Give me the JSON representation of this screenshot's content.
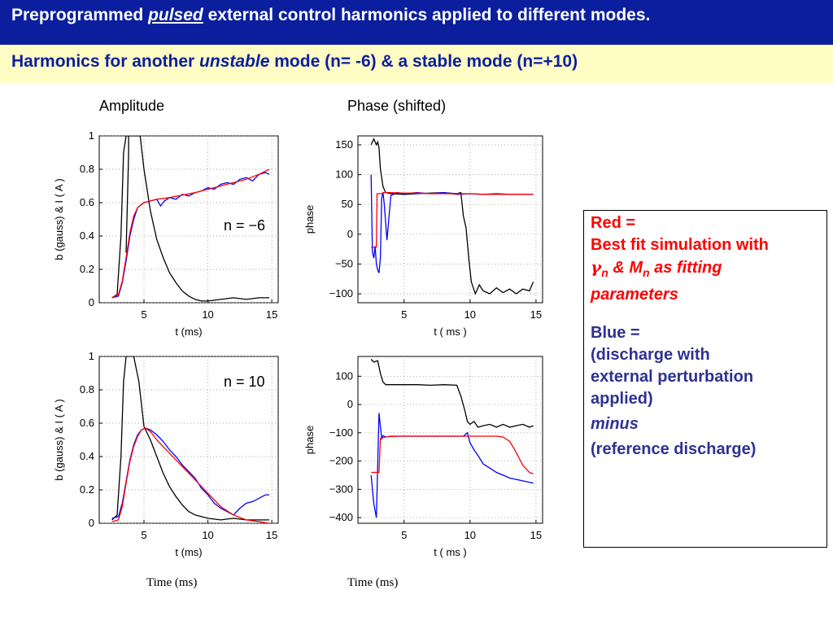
{
  "header": {
    "title_prefix": "Preprogrammed ",
    "title_em": "pulsed",
    "title_suffix": " external control harmonics applied to different modes.",
    "subtitle_prefix": "Harmonics for another ",
    "subtitle_em": "unstable",
    "subtitle_suffix": " mode (n= -6) & a stable mode (n=+10)"
  },
  "columns": {
    "left": "Amplitude",
    "right": "Phase (shifted)"
  },
  "time_labels": {
    "left": "Time (ms)",
    "right": "Time (ms)"
  },
  "legend": {
    "red_1": "Red =",
    "red_2": "Best fit simulation with",
    "red_gamma": "γ",
    "red_n1": "n",
    "red_mid": " & M",
    "red_n2": "n",
    "red_as": " as fitting",
    "red_3": "parameters",
    "blue_1": "Blue =",
    "blue_2": "(discharge with",
    "blue_3": "external perturbation",
    "blue_4": "applied)",
    "blue_5": "minus",
    "blue_6": "(reference discharge)"
  },
  "colors": {
    "title_bg": "#0b1f9e",
    "subtitle_bg": "#fffcc4",
    "red": "#ff0000",
    "blue": "#0000ff",
    "black": "#000000"
  },
  "chart_data": [
    {
      "type": "line",
      "id": "amp_n_minus6",
      "annotation": "n = −6",
      "xlabel": "t (ms)",
      "ylabel": "b (gauss)  & I ( A )",
      "xlim": [
        1.5,
        15.5
      ],
      "ylim": [
        0,
        1
      ],
      "xticks": [
        5,
        10,
        15
      ],
      "yticks": [
        0,
        0.2,
        0.4,
        0.6,
        0.8,
        1
      ],
      "grid": true,
      "series": [
        {
          "color": "black",
          "x": [
            2.5,
            2.9,
            3.2,
            3.4,
            3.6,
            3.9,
            4.1,
            4.4,
            4.7,
            5.0,
            5.5,
            6.0,
            6.5,
            7.0,
            7.5,
            8.0,
            8.5,
            9.0,
            9.5,
            10,
            11,
            12,
            13,
            14,
            14.8
          ],
          "y": [
            0.03,
            0.05,
            0.4,
            0.9,
            1.0,
            1.0,
            1.0,
            1.0,
            1.0,
            0.8,
            0.55,
            0.38,
            0.27,
            0.18,
            0.12,
            0.07,
            0.04,
            0.02,
            0.01,
            0.01,
            0.02,
            0.03,
            0.02,
            0.03,
            0.03
          ]
        },
        {
          "color": "black",
          "x": [
            3.6,
            3.7,
            3.8,
            3.8
          ],
          "y": [
            0.3,
            0.6,
            0.9,
            1.0
          ]
        },
        {
          "color": "blue",
          "x": [
            2.5,
            3.0,
            3.3,
            3.6,
            3.9,
            4.2,
            4.5,
            5.0,
            5.5,
            6.0,
            6.3,
            6.6,
            7.0,
            7.5,
            8.0,
            8.5,
            9.0,
            9.5,
            10,
            10.5,
            11,
            11.5,
            12,
            12.5,
            13,
            13.5,
            14,
            14.5,
            14.8
          ],
          "y": [
            0.03,
            0.04,
            0.12,
            0.25,
            0.4,
            0.5,
            0.57,
            0.6,
            0.61,
            0.62,
            0.58,
            0.61,
            0.63,
            0.62,
            0.65,
            0.64,
            0.66,
            0.67,
            0.69,
            0.68,
            0.71,
            0.72,
            0.71,
            0.74,
            0.75,
            0.73,
            0.77,
            0.78,
            0.77
          ]
        },
        {
          "color": "red",
          "x": [
            2.5,
            3.0,
            3.3,
            3.6,
            3.9,
            4.2,
            4.5,
            5.0,
            5.5,
            6.0,
            7,
            8,
            9,
            10,
            11,
            12,
            13,
            14,
            14.8
          ],
          "y": [
            0.03,
            0.05,
            0.13,
            0.27,
            0.42,
            0.52,
            0.57,
            0.6,
            0.61,
            0.62,
            0.63,
            0.645,
            0.66,
            0.68,
            0.7,
            0.72,
            0.74,
            0.77,
            0.8
          ]
        }
      ]
    },
    {
      "type": "line",
      "id": "phase_n_minus6",
      "xlabel": "t  ( ms )",
      "ylabel": "phase",
      "xlim": [
        1.5,
        15.5
      ],
      "ylim": [
        -115,
        165
      ],
      "xticks": [
        5,
        10,
        15
      ],
      "yticks": [
        -100,
        -50,
        0,
        50,
        100,
        150
      ],
      "grid": true,
      "series": [
        {
          "color": "black",
          "x": [
            2.5,
            2.7,
            2.9,
            3.0,
            3.1,
            3.2,
            3.4,
            3.6,
            4,
            5,
            6,
            7,
            8,
            9,
            9.3,
            9.5,
            9.7,
            9.9,
            10.1,
            10.4,
            10.7,
            11,
            11.5,
            12,
            12.5,
            13,
            13.5,
            14,
            14.5,
            14.8
          ],
          "y": [
            150,
            160,
            150,
            155,
            145,
            110,
            80,
            70,
            68,
            67,
            68,
            69,
            70,
            68,
            70,
            30,
            10,
            -40,
            -80,
            -100,
            -85,
            -95,
            -100,
            -90,
            -98,
            -92,
            -100,
            -92,
            -95,
            -80
          ]
        },
        {
          "color": "blue",
          "x": [
            2.5,
            2.6,
            2.7,
            2.8,
            2.9,
            3.0,
            3.1,
            3.2,
            3.3,
            3.4,
            3.5,
            3.7,
            4.0,
            4.5,
            5,
            6,
            7,
            8,
            9,
            10,
            11,
            12,
            13,
            14,
            14.8
          ],
          "y": [
            100,
            -30,
            -40,
            -20,
            -50,
            -60,
            -65,
            -40,
            60,
            70,
            50,
            -10,
            65,
            70,
            68,
            70,
            68,
            70,
            67,
            68,
            67,
            68,
            67,
            67,
            67
          ]
        },
        {
          "color": "red",
          "x": [
            2.5,
            2.9,
            2.95,
            3.3,
            3.4,
            4,
            5,
            6,
            7,
            8,
            9,
            10,
            11,
            12,
            13,
            14,
            14.8
          ],
          "y": [
            -22,
            -22,
            68,
            68,
            70,
            70,
            69,
            69,
            68,
            68,
            68,
            68,
            67,
            67,
            67,
            67,
            67
          ]
        }
      ]
    },
    {
      "type": "line",
      "id": "amp_n_10",
      "annotation": "n = 10",
      "xlabel": "t (ms)",
      "ylabel": "b (gauss)  & I ( A )",
      "xlim": [
        1.5,
        15.5
      ],
      "ylim": [
        0,
        1
      ],
      "xticks": [
        5,
        10,
        15
      ],
      "yticks": [
        0,
        0.2,
        0.4,
        0.6,
        0.8,
        1
      ],
      "grid": true,
      "series": [
        {
          "color": "black",
          "x": [
            2.5,
            2.9,
            3.2,
            3.4,
            3.6,
            3.9,
            4.2,
            4.6,
            5.0,
            5.5,
            6.0,
            6.5,
            7.0,
            7.5,
            8.0,
            8.5,
            9.0,
            10,
            11,
            12,
            13,
            14,
            14.8
          ],
          "y": [
            0.02,
            0.05,
            0.4,
            0.85,
            1.0,
            1.0,
            1.0,
            0.85,
            0.58,
            0.5,
            0.4,
            0.3,
            0.22,
            0.16,
            0.11,
            0.07,
            0.05,
            0.03,
            0.02,
            0.03,
            0.02,
            0.02,
            0.02
          ]
        },
        {
          "color": "blue",
          "x": [
            2.5,
            3.0,
            3.3,
            3.6,
            3.9,
            4.2,
            4.5,
            4.8,
            5.1,
            5.5,
            6.0,
            6.5,
            7,
            7.5,
            8,
            8.5,
            9,
            9.5,
            10,
            10.5,
            11,
            11.5,
            12,
            12.5,
            13,
            13.5,
            14,
            14.5,
            14.8
          ],
          "y": [
            0.03,
            0.04,
            0.12,
            0.25,
            0.38,
            0.47,
            0.53,
            0.56,
            0.57,
            0.56,
            0.53,
            0.49,
            0.44,
            0.4,
            0.35,
            0.31,
            0.27,
            0.21,
            0.17,
            0.12,
            0.09,
            0.07,
            0.05,
            0.09,
            0.12,
            0.13,
            0.15,
            0.17,
            0.17
          ]
        },
        {
          "color": "red",
          "x": [
            2.5,
            3.0,
            3.3,
            3.6,
            3.9,
            4.2,
            4.5,
            4.8,
            5.1,
            5.5,
            6,
            7,
            8,
            9,
            10,
            11,
            12,
            13,
            14,
            14.8
          ],
          "y": [
            0.01,
            0.02,
            0.1,
            0.24,
            0.37,
            0.46,
            0.52,
            0.56,
            0.57,
            0.55,
            0.5,
            0.42,
            0.34,
            0.26,
            0.18,
            0.1,
            0.05,
            0.02,
            0.01,
            0.0
          ]
        }
      ]
    },
    {
      "type": "line",
      "id": "phase_n_10",
      "xlabel": "t  ( ms )",
      "ylabel": "phase",
      "xlim": [
        1.5,
        15.5
      ],
      "ylim": [
        -420,
        170
      ],
      "xticks": [
        5,
        10,
        15
      ],
      "yticks": [
        -400,
        -300,
        -200,
        -100,
        0,
        100
      ],
      "grid": true,
      "series": [
        {
          "color": "black",
          "x": [
            2.5,
            2.7,
            3.0,
            3.2,
            3.4,
            3.6,
            4,
            5,
            6,
            7,
            8,
            9,
            9.3,
            9.6,
            9.8,
            10,
            10.3,
            10.6,
            11,
            11.5,
            12,
            12.5,
            13,
            13.5,
            14,
            14.5,
            14.8
          ],
          "y": [
            160,
            150,
            155,
            110,
            80,
            70,
            70,
            70,
            70,
            68,
            70,
            68,
            30,
            -20,
            -60,
            -70,
            -60,
            -80,
            -75,
            -70,
            -80,
            -70,
            -80,
            -75,
            -70,
            -80,
            -75
          ]
        },
        {
          "color": "blue",
          "x": [
            2.5,
            2.7,
            2.9,
            3.1,
            3.3,
            3.4,
            3.6,
            4,
            5,
            6,
            7,
            8,
            9,
            9.5,
            9.8,
            10.0,
            10.3,
            10.6,
            11,
            11.5,
            12,
            12.5,
            13,
            13.5,
            14,
            14.5,
            14.8
          ],
          "y": [
            -250,
            -350,
            -400,
            -30,
            -120,
            -110,
            -115,
            -112,
            -112,
            -112,
            -112,
            -112,
            -112,
            -112,
            -100,
            -135,
            -160,
            -180,
            -210,
            -225,
            -240,
            -250,
            -260,
            -265,
            -270,
            -275,
            -278
          ]
        },
        {
          "color": "red",
          "x": [
            2.5,
            3.1,
            3.2,
            3.6,
            4,
            5,
            6,
            7,
            8,
            9,
            10,
            11,
            12,
            12.5,
            13,
            13.5,
            14,
            14.5,
            14.8
          ],
          "y": [
            -240,
            -240,
            -120,
            -115,
            -113,
            -112,
            -112,
            -112,
            -112,
            -112,
            -112,
            -112,
            -112,
            -115,
            -130,
            -170,
            -215,
            -240,
            -245
          ]
        }
      ]
    }
  ]
}
